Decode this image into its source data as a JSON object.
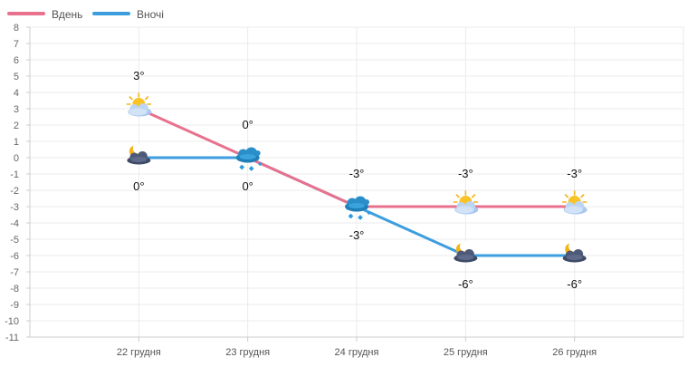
{
  "chart_data": {
    "type": "line",
    "categories": [
      "22 грудня",
      "23 грудня",
      "24 грудня",
      "25 грудня",
      "26 грудня"
    ],
    "series": [
      {
        "name": "Вдень",
        "color": "#e8718d",
        "values": [
          3,
          0,
          -3,
          -3,
          -3
        ],
        "labels": [
          "3°",
          "0°",
          "-3°",
          "-3°",
          "-3°"
        ],
        "icons": [
          "sun-cloud-icon",
          "cloud-snow-icon",
          "cloud-snow-icon",
          "sun-cloud-icon",
          "sun-cloud-icon"
        ]
      },
      {
        "name": "Вночі",
        "color": "#3c9ede",
        "values": [
          0,
          0,
          -3,
          -6,
          -6
        ],
        "labels": [
          "0°",
          "0°",
          "-3°",
          "-6°",
          "-6°"
        ],
        "icons": [
          "moon-cloud-icon",
          "cloud-snow-icon",
          "cloud-snow-icon",
          "moon-cloud-icon",
          "moon-cloud-icon"
        ]
      }
    ],
    "yticks": [
      "8",
      "7",
      "6",
      "5",
      "4",
      "3",
      "2",
      "1",
      "0",
      "-1",
      "-2",
      "-3",
      "-4",
      "-5",
      "-6",
      "-7",
      "-8",
      "-9",
      "-10",
      "-11"
    ],
    "ylim": [
      -11,
      8
    ],
    "grid": true,
    "legend": "top-left"
  }
}
